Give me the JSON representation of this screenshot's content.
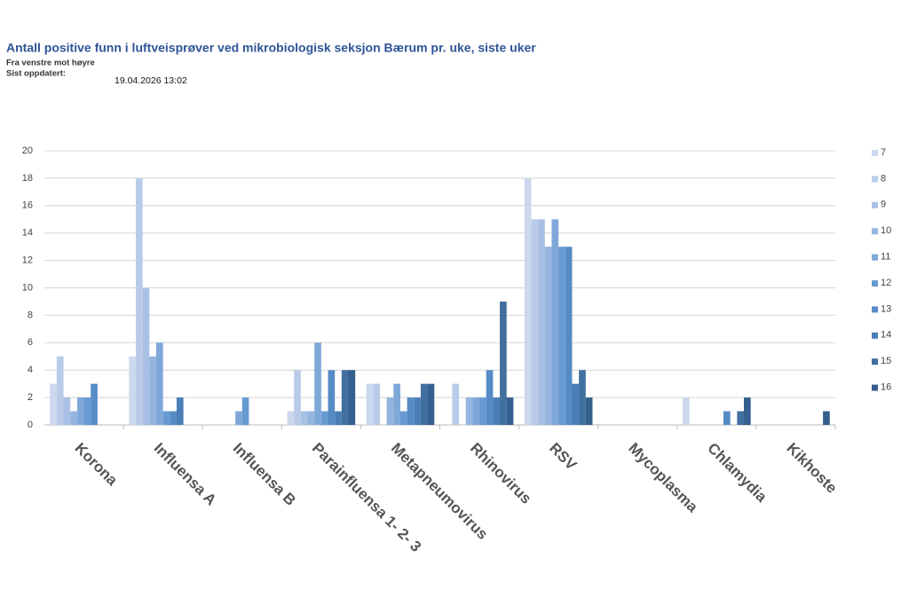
{
  "chart_data": {
    "type": "bar",
    "title": "Antall positive funn i luftveisprøver ved mikrobiologisk seksjon Bærum pr. uke, siste uker",
    "subtitle": "Fra venstre mot høyre",
    "updated_label": "Sist oppdatert:",
    "updated_value": "19.04.2026 13:02",
    "categories": [
      "Korona",
      "Influensa A",
      "Influensa B",
      "Parainfluensa 1- 2- 3",
      "Metapneumovirus",
      "Rhinovirus",
      "RSV",
      "Mycoplasma",
      "Chlamydia",
      "Kikhoste"
    ],
    "series": [
      {
        "name": "7",
        "color": "#cbd8ee",
        "values": [
          3,
          5,
          0,
          1,
          3,
          0,
          18,
          0,
          2,
          0
        ]
      },
      {
        "name": "8",
        "color": "#b9cbe8",
        "values": [
          5,
          18,
          0,
          4,
          3,
          3,
          15,
          0,
          0,
          0
        ]
      },
      {
        "name": "9",
        "color": "#a8c0e3",
        "values": [
          2,
          10,
          0,
          1,
          0,
          0,
          15,
          0,
          0,
          0
        ]
      },
      {
        "name": "10",
        "color": "#95b5de",
        "values": [
          1,
          5,
          0,
          1,
          2,
          2,
          13,
          0,
          0,
          0
        ]
      },
      {
        "name": "11",
        "color": "#7fa8d9",
        "values": [
          2,
          6,
          1,
          6,
          3,
          2,
          15,
          0,
          0,
          0
        ]
      },
      {
        "name": "12",
        "color": "#679ad1",
        "values": [
          2,
          1,
          2,
          1,
          1,
          2,
          13,
          0,
          0,
          0
        ]
      },
      {
        "name": "13",
        "color": "#558cc5",
        "values": [
          3,
          1,
          0,
          4,
          2,
          4,
          13,
          0,
          1,
          0
        ]
      },
      {
        "name": "14",
        "color": "#4b7eb6",
        "values": [
          0,
          2,
          0,
          1,
          2,
          2,
          3,
          0,
          0,
          0
        ]
      },
      {
        "name": "15",
        "color": "#406fa0",
        "values": [
          0,
          0,
          0,
          4,
          3,
          9,
          4,
          0,
          1,
          0
        ]
      },
      {
        "name": "16",
        "color": "#355f8c",
        "values": [
          0,
          0,
          0,
          4,
          3,
          2,
          2,
          0,
          2,
          1
        ]
      }
    ],
    "ylim": [
      0,
      20
    ],
    "yticks": [
      0,
      2,
      4,
      6,
      8,
      10,
      12,
      14,
      16,
      18,
      20
    ],
    "grid": true,
    "legend": "right"
  }
}
